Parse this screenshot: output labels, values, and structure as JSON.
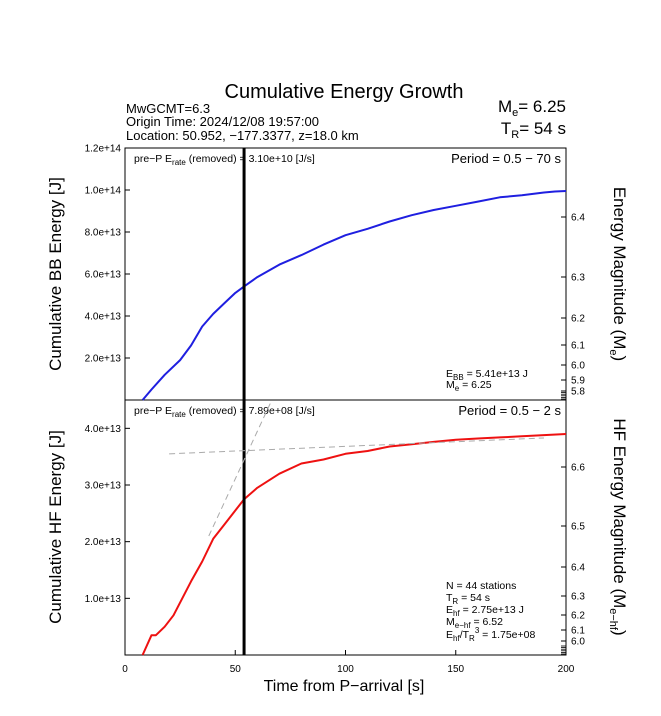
{
  "header": {
    "title": "Cumulative Energy Growth",
    "info_lines": [
      "MwGCMT=6.3",
      "Origin Time: 2024/12/08 19:57:00",
      "Location: 50.952, −177.3377, z=18.0 km"
    ],
    "me_label": "M",
    "me_sub": "e",
    "me_value": "= 6.25",
    "tr_label": "T",
    "tr_sub": "R",
    "tr_value": "= 54 s"
  },
  "colors": {
    "bb": "#1f1fe0",
    "hf": "#ee1111",
    "marker": "#000000",
    "dashed": "#aaaaaa"
  },
  "chart_data": [
    {
      "type": "line",
      "panel": "broadband",
      "ylabel": "Cumulative BB Energy [J]",
      "right_label": "Energy Magnitude (M",
      "right_label_sub": "e",
      "right_label_tail": ")",
      "ylim": [
        0,
        120000000000000.0
      ],
      "yticks": [
        20000000000000.0,
        40000000000000.0,
        60000000000000.0,
        80000000000000.0,
        100000000000000.0,
        120000000000000.0
      ],
      "ytick_labels": [
        "2.0e+13",
        "4.0e+13",
        "6.0e+13",
        "8.0e+13",
        "1.0e+14",
        "1.2e+14"
      ],
      "right_ticks": [
        6.4,
        6.3,
        6.2,
        6.1,
        6.0,
        5.9,
        5.8
      ],
      "right_tick_labels": [
        "6.4",
        "6.3",
        "6.2",
        "6.1",
        "6.0",
        "5.9",
        "5.8"
      ],
      "xlim": [
        0,
        200
      ],
      "series": [
        {
          "x": [
            8,
            12,
            18,
            25,
            30,
            35,
            40,
            45,
            50,
            54,
            60,
            70,
            80,
            90,
            100,
            110,
            120,
            130,
            140,
            150,
            160,
            170,
            180,
            190,
            195,
            200
          ],
          "y": [
            0,
            5000000000000.0,
            12000000000000.0,
            19000000000000.0,
            26000000000000.0,
            35000000000000.0,
            41000000000000.0,
            46000000000000.0,
            51000000000000.0,
            54100000000000.0,
            58500000000000.0,
            64500000000000.0,
            69000000000000.0,
            74000000000000.0,
            78500000000000.0,
            81500000000000.0,
            85000000000000.0,
            88000000000000.0,
            90500000000000.0,
            92500000000000.0,
            94500000000000.0,
            96500000000000.0,
            97500000000000.0,
            98800000000000.0,
            99300000000000.0,
            99500000000000.0
          ]
        }
      ],
      "pre_label": "pre−P E",
      "pre_sub": "rate",
      "pre_tail": " (removed) = 3.10e+10 [J/s]",
      "period": "Period = 0.5 − 70 s",
      "ann_e_label": "E",
      "ann_e_sub": "BB",
      "ann_e_value": " = 5.41e+13 J",
      "ann_m_label": "M",
      "ann_m_sub": "e",
      "ann_m_value": " = 6.25"
    },
    {
      "type": "line",
      "panel": "high-frequency",
      "xlabel": "Time from P−arrival [s]",
      "ylabel": "Cumulative HF Energy [J]",
      "right_label": "HF Energy Magnitude (M",
      "right_label_sub": "e−hf",
      "right_label_tail": ")",
      "ylim": [
        0,
        45000000000000.0
      ],
      "yticks": [
        10000000000000.0,
        20000000000000.0,
        30000000000000.0,
        40000000000000.0
      ],
      "ytick_labels": [
        "1.0e+13",
        "2.0e+13",
        "3.0e+13",
        "4.0e+13"
      ],
      "right_ticks": [
        6.6,
        6.5,
        6.4,
        6.3,
        6.2,
        6.1,
        6.0
      ],
      "right_tick_labels": [
        "6.6",
        "6.5",
        "6.4",
        "6.3",
        "6.2",
        "6.1",
        "6.0"
      ],
      "xlim": [
        0,
        200
      ],
      "xticks": [
        0,
        50,
        100,
        150,
        200
      ],
      "xtick_labels": [
        "0",
        "50",
        "100",
        "150",
        "200"
      ],
      "series": [
        {
          "x": [
            8,
            12,
            14,
            18,
            22,
            26,
            30,
            35,
            40,
            45,
            50,
            54,
            60,
            70,
            80,
            90,
            100,
            110,
            120,
            130,
            140,
            150,
            160,
            170,
            180,
            190,
            200
          ],
          "y": [
            0,
            3500000000000.0,
            3500000000000.0,
            5000000000000.0,
            7000000000000.0,
            10000000000000.0,
            13000000000000.0,
            16500000000000.0,
            20500000000000.0,
            23000000000000.0,
            25500000000000.0,
            27500000000000.0,
            29500000000000.0,
            32000000000000.0,
            33800000000000.0,
            34500000000000.0,
            35500000000000.0,
            36000000000000.0,
            36800000000000.0,
            37200000000000.0,
            37600000000000.0,
            38000000000000.0,
            38200000000000.0,
            38400000000000.0,
            38600000000000.0,
            38800000000000.0,
            39000000000000.0
          ]
        }
      ],
      "pre_label": "pre−P E",
      "pre_sub": "rate",
      "pre_tail": " (removed) = 7.89e+08 [J/s]",
      "period": "Period = 0.5 − 2 s",
      "ann_n": "N = 44 stations",
      "ann_tr_label": "T",
      "ann_tr_sub": "R",
      "ann_tr_value": " = 54  s",
      "ann_e_label": "E",
      "ann_e_sub": "hf",
      "ann_e_value": " = 2.75e+13 J",
      "ann_m_label": "M",
      "ann_m_sub": "e−hf",
      "ann_m_value": " = 6.52",
      "ann_r_label": "E",
      "ann_r_sub": "hf",
      "ann_r_mid": "/T",
      "ann_r_sub2": "R",
      "ann_r_sup": "3",
      "ann_r_value": " =  1.75e+08"
    }
  ]
}
